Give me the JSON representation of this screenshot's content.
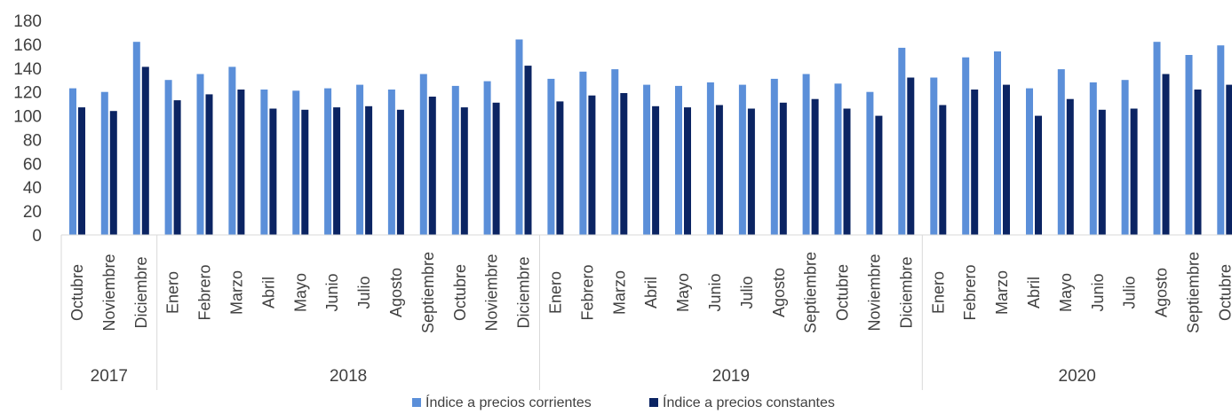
{
  "chart_data": {
    "type": "bar",
    "ylim": [
      0,
      180
    ],
    "yticks": [
      0,
      20,
      40,
      60,
      80,
      100,
      120,
      140,
      160,
      180
    ],
    "grid": false,
    "legend_position": "bottom",
    "groups": [
      {
        "label": "2017",
        "categories": [
          "Octubre",
          "Noviembre",
          "Diciembre"
        ]
      },
      {
        "label": "2018",
        "categories": [
          "Enero",
          "Febrero",
          "Marzo",
          "Abril",
          "Mayo",
          "Junio",
          "Julio",
          "Agosto",
          "Septiembre",
          "Octubre",
          "Noviembre",
          "Diciembre"
        ]
      },
      {
        "label": "2019",
        "categories": [
          "Enero",
          "Febrero",
          "Marzo",
          "Abril",
          "Mayo",
          "Junio",
          "Julio",
          "Agosto",
          "Septiembre",
          "Octubre",
          "Noviembre",
          "Diciembre"
        ]
      },
      {
        "label": "2020",
        "categories": [
          "Enero",
          "Febrero",
          "Marzo",
          "Abril",
          "Mayo",
          "Junio",
          "Julio",
          "Agosto",
          "Septiembre",
          "Octubre"
        ]
      }
    ],
    "series": [
      {
        "name": "Índice a precios corrientes",
        "color": "#5B8FD9",
        "values": [
          123,
          120,
          162,
          130,
          135,
          141,
          122,
          121,
          123,
          126,
          122,
          135,
          125,
          129,
          164,
          131,
          137,
          139,
          126,
          125,
          128,
          126,
          131,
          135,
          127,
          120,
          157,
          132,
          149,
          154,
          123,
          139,
          128,
          130,
          162,
          151,
          159
        ]
      },
      {
        "name": "Índice a precios  constantes",
        "color": "#0B2463",
        "values": [
          107,
          104,
          141,
          113,
          118,
          122,
          106,
          105,
          107,
          108,
          105,
          116,
          107,
          111,
          142,
          112,
          117,
          119,
          108,
          107,
          109,
          106,
          111,
          114,
          106,
          100,
          132,
          109,
          122,
          126,
          100,
          114,
          105,
          106,
          135,
          122,
          126
        ]
      }
    ]
  }
}
